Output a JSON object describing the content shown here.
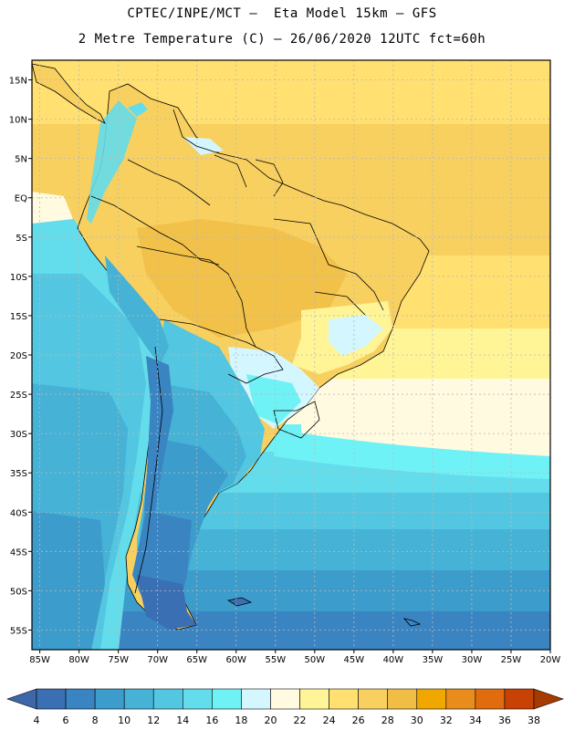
{
  "header": {
    "line1": "CPTEC/INPE/MCT —  Eta Model 15km — GFS",
    "line2": "2 Metre Temperature (C) — 26/06/2020 12UTC fct=60h"
  },
  "map": {
    "lat_labels": [
      "15N",
      "10N",
      "5N",
      "EQ",
      "5S",
      "10S",
      "15S",
      "20S",
      "25S",
      "30S",
      "35S",
      "40S",
      "45S",
      "50S",
      "55S"
    ],
    "lon_labels": [
      "85W",
      "80W",
      "75W",
      "70W",
      "65W",
      "60W",
      "55W",
      "50W",
      "45W",
      "40W",
      "35W",
      "30W",
      "25W",
      "20W"
    ],
    "extent": {
      "lon_min": -86,
      "lon_max": -20,
      "lat_min": -57.5,
      "lat_max": 17.5
    },
    "grid": true
  },
  "colorbar": {
    "labels": [
      "4",
      "6",
      "8",
      "10",
      "12",
      "14",
      "16",
      "18",
      "20",
      "22",
      "24",
      "26",
      "28",
      "30",
      "32",
      "34",
      "36",
      "38"
    ],
    "colors": [
      "#3a6fb4",
      "#3a84c2",
      "#3c9ccb",
      "#45b2d6",
      "#53c7e1",
      "#63dceb",
      "#6ff2f6",
      "#d4f6ff",
      "#fffae0",
      "#fff596",
      "#ffe070",
      "#f8d060",
      "#f0be45",
      "#f0a800",
      "#e88c1c",
      "#e06c0e",
      "#c84206"
    ],
    "low_arrow": "#3e67aa",
    "high_arrow": "#a63a00"
  }
}
